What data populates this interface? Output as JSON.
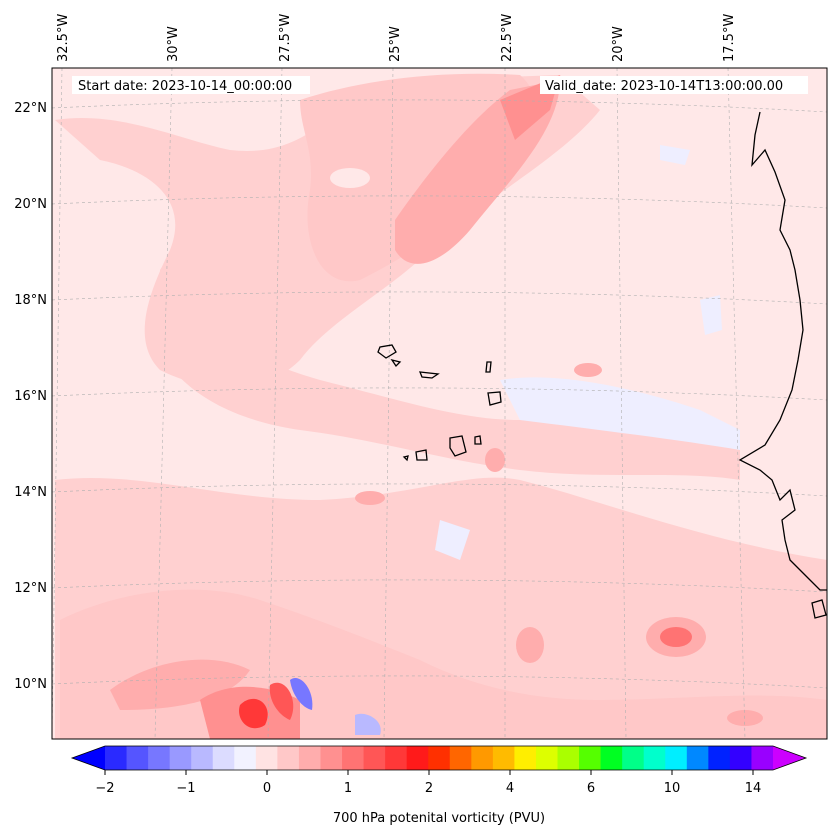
{
  "map": {
    "start_date": "Start date: 2023-10-14_00:00:00",
    "valid_date": "Valid_date: 2023-10-14T13:00:00.00",
    "lon_labels": [
      "32.5°W",
      "30°W",
      "27.5°W",
      "25°W",
      "22.5°W",
      "20°W",
      "17.5°W"
    ],
    "lat_labels": [
      "22°N",
      "20°N",
      "18°N",
      "16°N",
      "14°N",
      "12°N",
      "10°N"
    ]
  },
  "colorbar": {
    "label": "700 hPa potenital vorticity (PVU)",
    "ticks": [
      "−2",
      "−1",
      "0",
      "1",
      "2",
      "4",
      "6",
      "10",
      "14"
    ],
    "colors": [
      "#0000ff",
      "#2a2aff",
      "#5555ff",
      "#7777ff",
      "#9999ff",
      "#b9b9ff",
      "#dcdcff",
      "#f2f2ff",
      "#ffe3e3",
      "#ffc8c8",
      "#ffadad",
      "#ff9090",
      "#ff7373",
      "#ff5656",
      "#ff3838",
      "#ff1a1a",
      "#ff3000",
      "#ff6600",
      "#ff9900",
      "#ffbb00",
      "#ffee00",
      "#ddff00",
      "#aaff00",
      "#55ff00",
      "#00ff22",
      "#00ff88",
      "#00ffcc",
      "#00eeff",
      "#0088ff",
      "#0022ff",
      "#3300ff",
      "#9900ff",
      "#cc00ff"
    ]
  },
  "colors": {
    "background_field": "#ffe8e8",
    "light_pink": "#ffd0d0",
    "mid_pink": "#ffadad",
    "strong_red": "#ff7373",
    "light_blue": "#eeeeff",
    "mid_blue": "#9999ff",
    "coast": "#000000"
  }
}
